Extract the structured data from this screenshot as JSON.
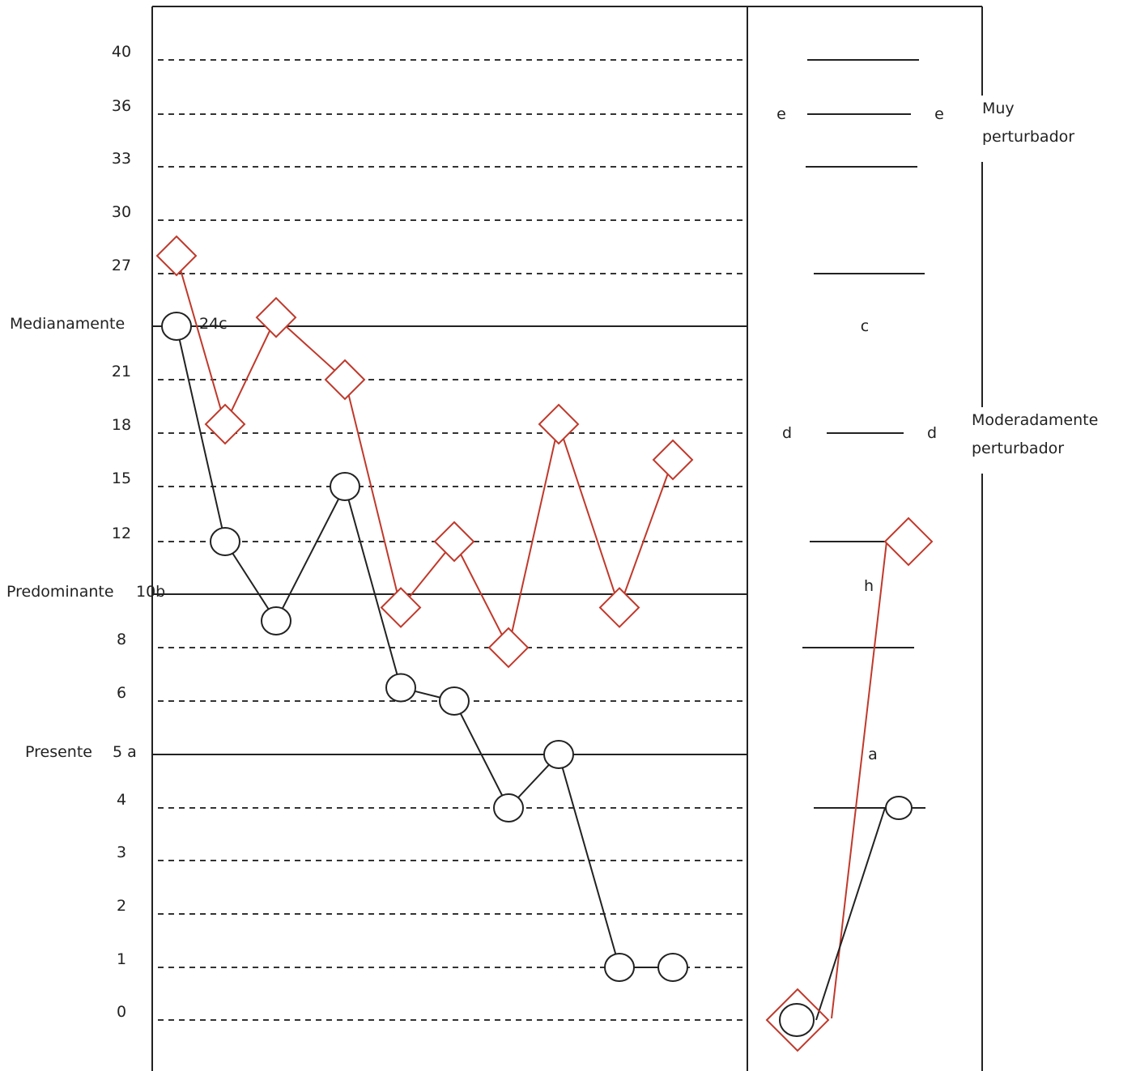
{
  "chart_data": {
    "type": "line",
    "y_ticks": [
      {
        "label": "40",
        "value": 40
      },
      {
        "label": "36",
        "value": 36
      },
      {
        "label": "33",
        "value": 33
      },
      {
        "label": "30",
        "value": 30
      },
      {
        "label": "27",
        "value": 27
      },
      {
        "label": "21",
        "value": 21
      },
      {
        "label": "18",
        "value": 18
      },
      {
        "label": "15",
        "value": 15
      },
      {
        "label": "12",
        "value": 12
      },
      {
        "label": "8",
        "value": 8
      },
      {
        "label": "6",
        "value": 6
      },
      {
        "label": "4",
        "value": 4
      },
      {
        "label": "3",
        "value": 3
      },
      {
        "label": "2",
        "value": 2
      },
      {
        "label": "1",
        "value": 1
      },
      {
        "label": "0",
        "value": 0
      }
    ],
    "level_lines": [
      {
        "label": "Medianamente",
        "code": "24c",
        "value": 24
      },
      {
        "label": "Predominante",
        "code": "10b",
        "value": 10
      },
      {
        "label": "Presente",
        "code": "5 a",
        "value": 5
      }
    ],
    "series": [
      {
        "marker": "diamond",
        "color": "#c0392b",
        "values": [
          28,
          18.5,
          24.5,
          21,
          9.5,
          12,
          8,
          18.5,
          9.5,
          16.5
        ]
      },
      {
        "marker": "circle",
        "color": "#222222",
        "values": [
          24,
          12,
          9,
          15,
          6.5,
          6,
          4,
          5,
          1,
          1
        ]
      }
    ],
    "side_panel": {
      "reference_values": [
        40,
        36,
        33,
        27,
        18,
        12,
        8,
        4
      ],
      "letters": [
        {
          "text": "e",
          "value": 36
        },
        {
          "text": "c",
          "value": 24
        },
        {
          "text": "d",
          "value": 18
        },
        {
          "text": "h",
          "value": 10
        },
        {
          "text": "a",
          "value": 5
        }
      ],
      "annotations": [
        {
          "lines": [
            "Muy",
            "perturbador"
          ],
          "value": 36
        },
        {
          "lines": [
            "Moderadamente",
            "perturbador"
          ],
          "value": 18
        }
      ],
      "diamond_series": [
        0,
        12
      ],
      "circle_series": [
        0,
        4
      ]
    }
  }
}
